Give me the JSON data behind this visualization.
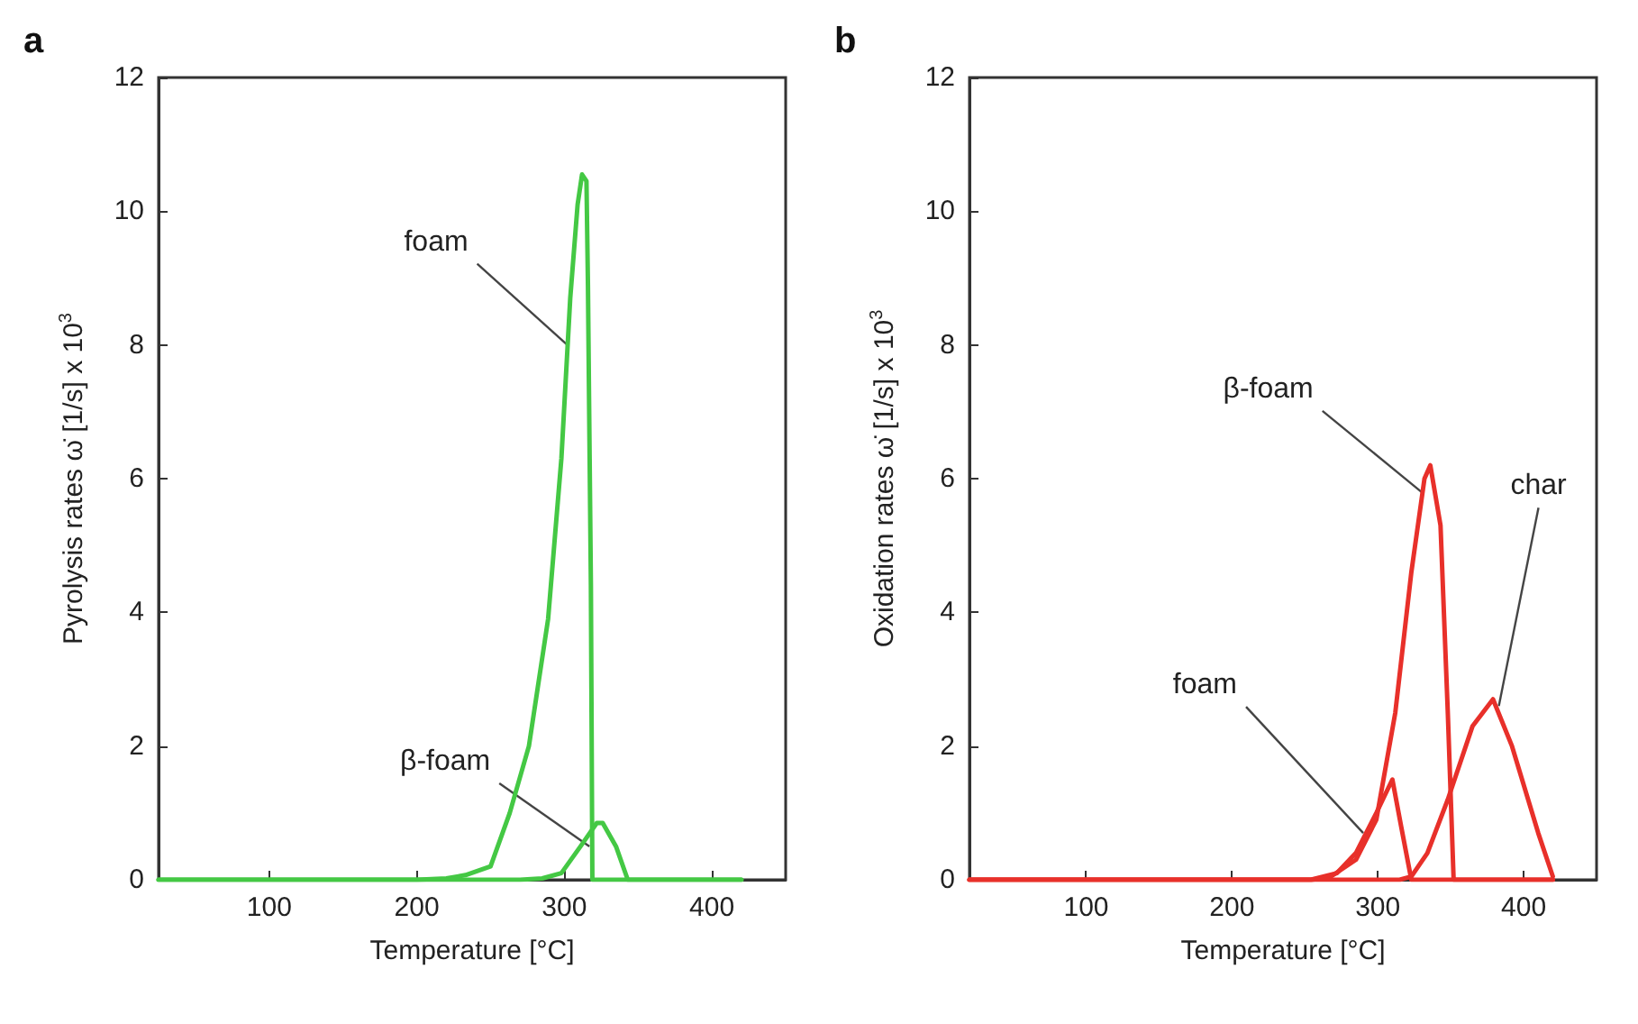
{
  "chart_data": [
    {
      "type": "line",
      "title": "a",
      "xlabel": "Temperature [°C]",
      "ylabel": "Pyrolysis rates ω̇ [1/s] x 10$^{3}$",
      "xlim": [
        25,
        450
      ],
      "xticks": [
        100,
        200,
        300,
        400
      ],
      "ylim": [
        0,
        12
      ],
      "yticks": [
        0,
        2,
        4,
        6,
        8,
        10,
        12
      ],
      "grid": false,
      "marker": "none",
      "line_style": "solid",
      "series": [
        {
          "color": "#44c844",
          "x": [
            25,
            200,
            220,
            233,
            250,
            263,
            276,
            289,
            298,
            304,
            309,
            312,
            315,
            316,
            318,
            319,
            360,
            420
          ],
          "values": [
            0,
            0,
            0.02,
            0.07,
            0.2,
            1.0,
            2.0,
            3.9,
            6.3,
            8.7,
            10.1,
            10.55,
            10.45,
            8.9,
            4.4,
            0,
            0,
            0
          ]
        },
        {
          "color": "#44c844",
          "x": [
            25,
            200,
            270,
            285,
            298,
            311,
            322,
            326,
            335,
            343,
            380,
            420
          ],
          "values": [
            0,
            0,
            0,
            0.02,
            0.1,
            0.5,
            0.85,
            0.85,
            0.5,
            0,
            0,
            0
          ]
        }
      ],
      "annotations": [
        {
          "text": "foam",
          "x": 302,
          "y": 8.0
        },
        {
          "text": "β-foam",
          "x": 317,
          "y": 0.5
        }
      ]
    },
    {
      "type": "line",
      "title": "b",
      "xlabel": "Temperature [°C]",
      "ylabel": "Oxidation rates ω̇ [1/s] x 10$^{3}$",
      "xlim": [
        20,
        450
      ],
      "xticks": [
        100,
        200,
        300,
        400
      ],
      "ylim": [
        0,
        12
      ],
      "yticks": [
        0,
        2,
        4,
        6,
        8,
        10,
        12
      ],
      "grid": false,
      "marker": "none",
      "line_style": "solid",
      "series": [
        {
          "color": "#e8302a",
          "x": [
            20,
            200,
            254,
            272,
            285,
            299,
            310,
            316,
            323,
            360,
            420
          ],
          "values": [
            0,
            0,
            0,
            0.1,
            0.4,
            1.0,
            1.5,
            0.8,
            0,
            0,
            0
          ]
        },
        {
          "color": "#e8302a",
          "x": [
            20,
            200,
            255,
            268,
            285,
            299,
            312,
            323,
            332,
            336,
            343,
            348,
            352,
            390,
            420
          ],
          "values": [
            0,
            0,
            0,
            0.05,
            0.3,
            0.9,
            2.5,
            4.6,
            6.0,
            6.2,
            5.3,
            2.5,
            0,
            0,
            0
          ]
        },
        {
          "color": "#e8302a",
          "x": [
            20,
            200,
            315,
            323,
            334,
            348,
            365,
            379,
            392,
            410,
            420
          ],
          "values": [
            0,
            0,
            0,
            0.05,
            0.4,
            1.2,
            2.3,
            2.7,
            2.0,
            0.7,
            0.05
          ]
        }
      ],
      "annotations": [
        {
          "text": "β-foam",
          "x": 330,
          "y": 5.8
        },
        {
          "text": "foam",
          "x": 290,
          "y": 0.7
        },
        {
          "text": "char",
          "x": 383,
          "y": 2.6
        }
      ]
    }
  ]
}
